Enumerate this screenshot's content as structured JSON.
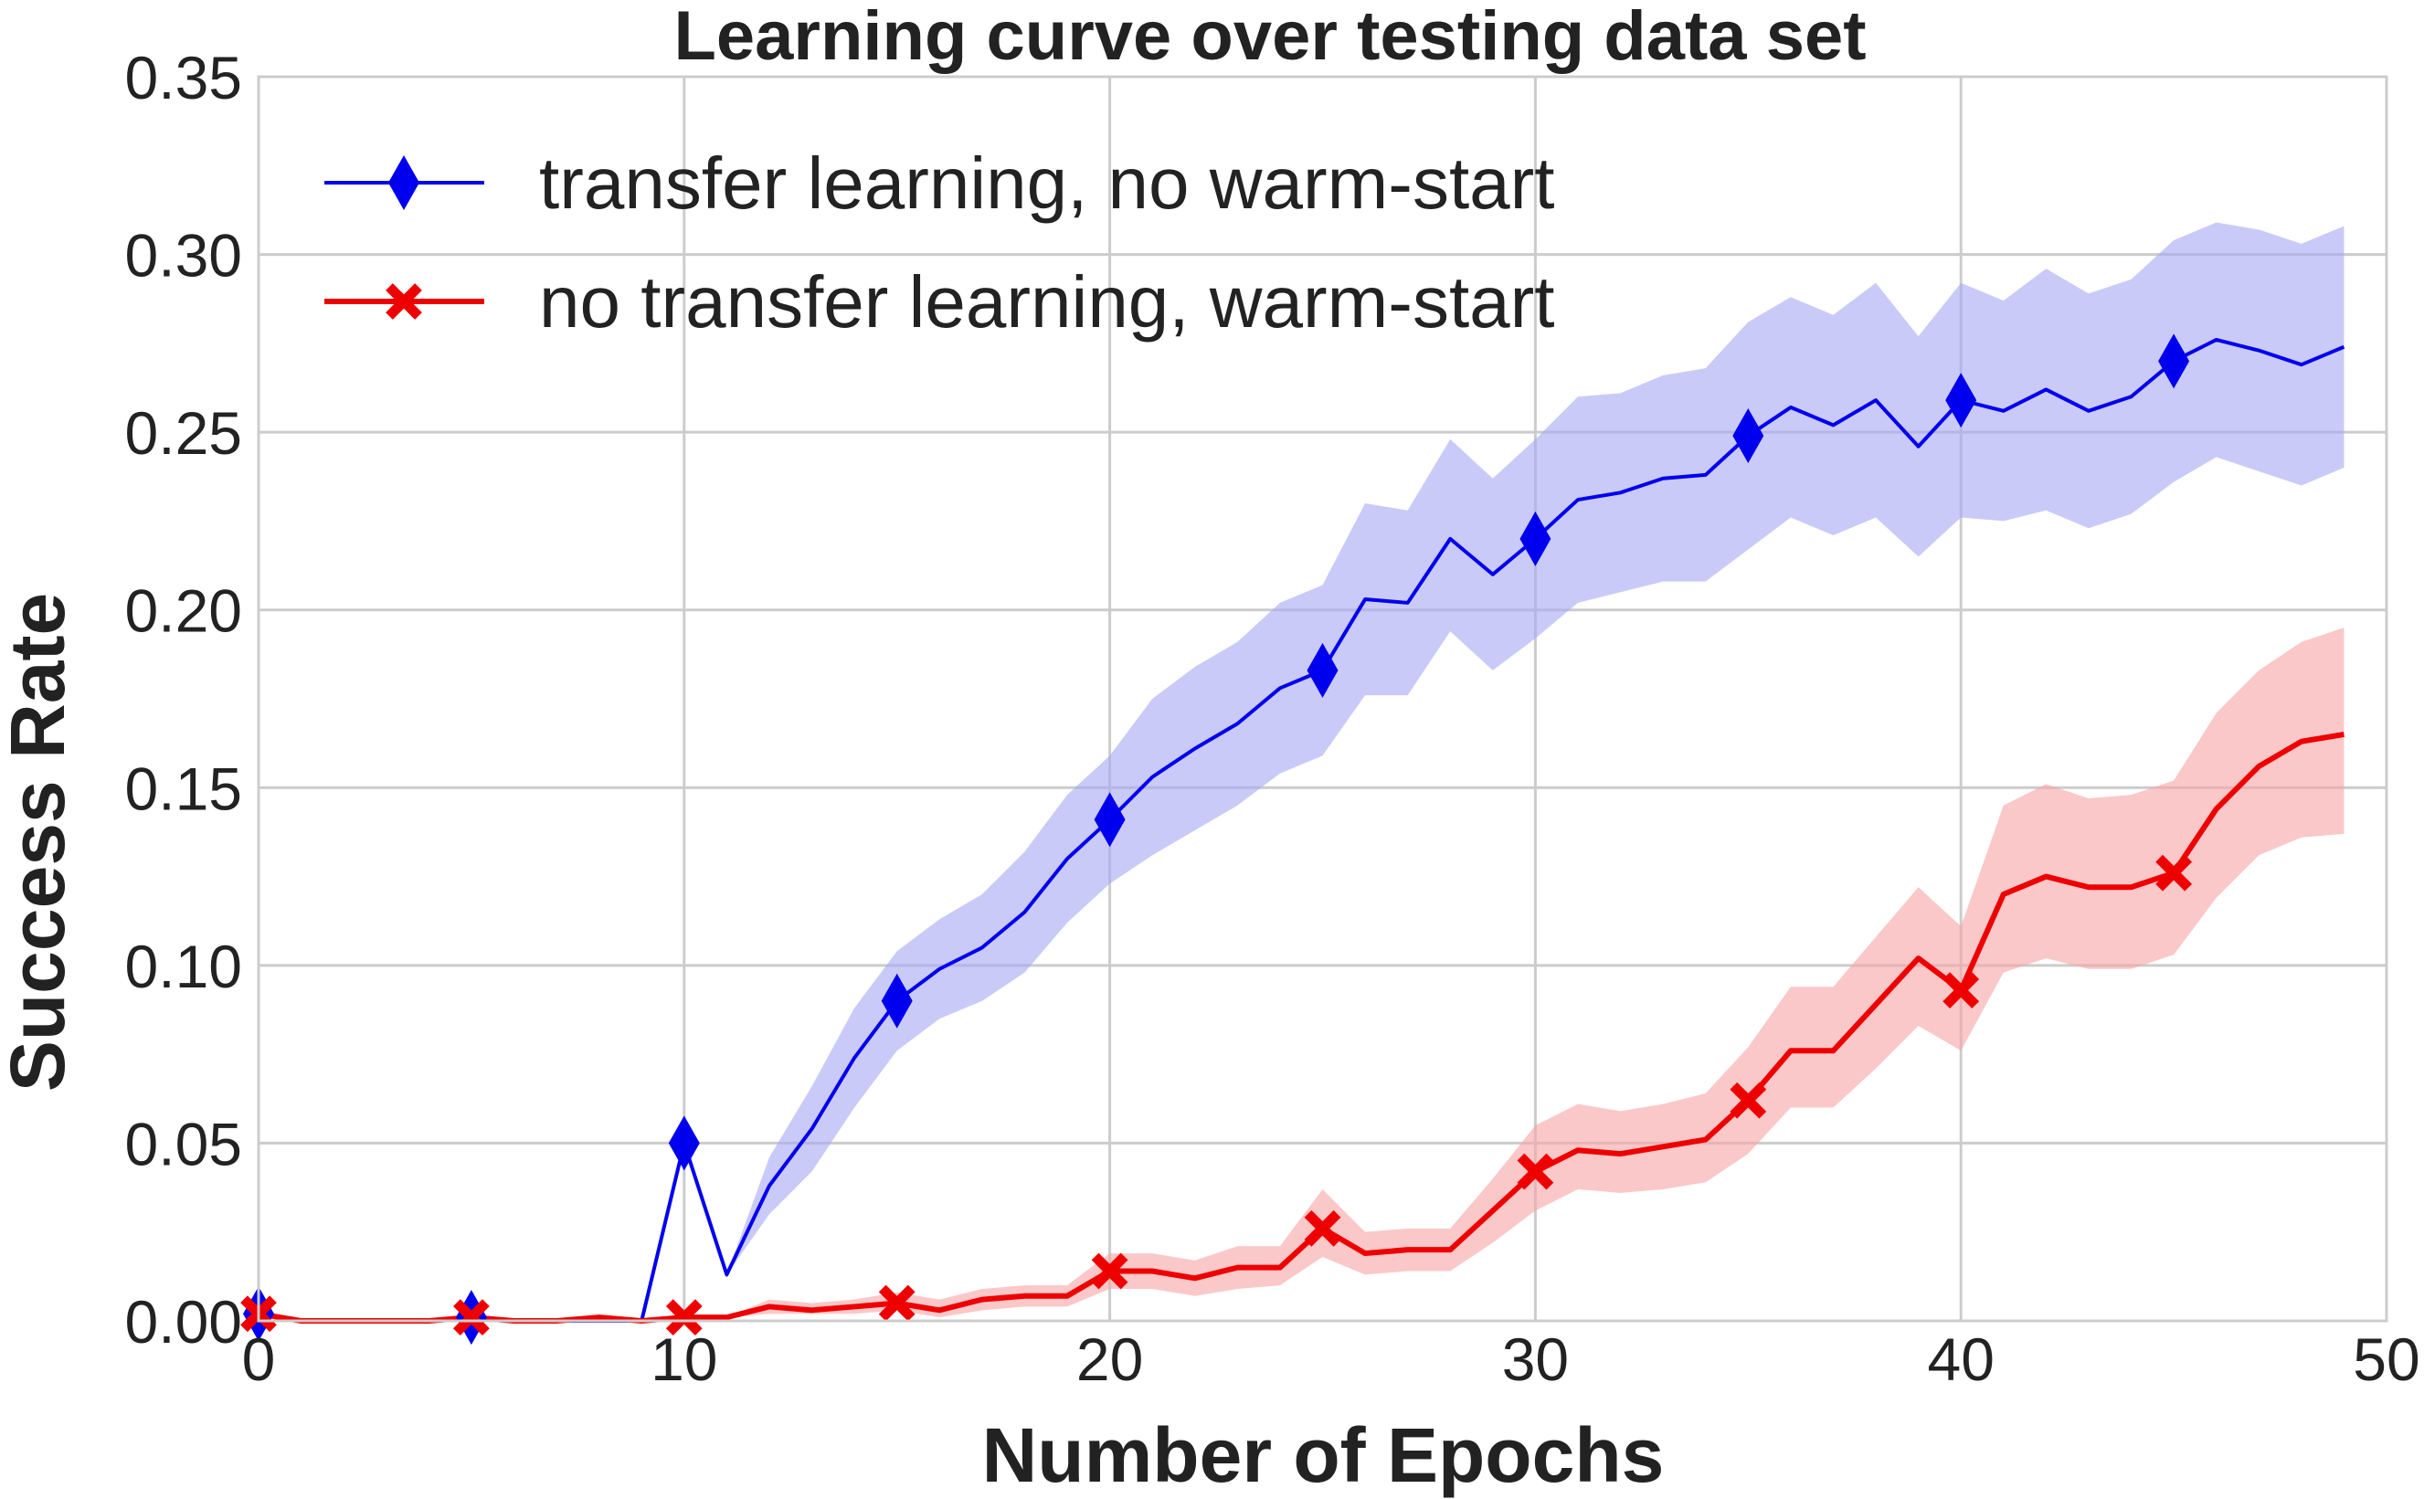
{
  "chart_data": {
    "type": "line",
    "title": "Learning curve over testing data set",
    "xlabel": "Number of Epochs",
    "ylabel": "Success Rate",
    "xlim": [
      0,
      50
    ],
    "ylim": [
      0,
      0.35
    ],
    "xticks": [
      0,
      10,
      20,
      30,
      40,
      50
    ],
    "xtick_labels": [
      "0",
      "10",
      "20",
      "30",
      "40",
      "50"
    ],
    "yticks": [
      0,
      0.05,
      0.1,
      0.15,
      0.2,
      0.25,
      0.3,
      0.35
    ],
    "ytick_labels": [
      "0.00",
      "0.05",
      "0.10",
      "0.15",
      "0.20",
      "0.25",
      "0.30",
      "0.35"
    ],
    "grid": true,
    "legend_position": "top-left",
    "x": [
      0,
      1,
      2,
      3,
      4,
      5,
      6,
      7,
      8,
      9,
      10,
      11,
      12,
      13,
      14,
      15,
      16,
      17,
      18,
      19,
      20,
      21,
      22,
      23,
      24,
      25,
      26,
      27,
      28,
      29,
      30,
      31,
      32,
      33,
      34,
      35,
      36,
      37,
      38,
      39,
      40,
      41,
      42,
      43,
      44,
      45,
      46,
      47,
      48,
      49
    ],
    "series": [
      {
        "name": "transfer learning, no warm-start",
        "color": "#0000ee",
        "band_color": "#a6a6f5",
        "marker": "diamond",
        "marker_every": 5,
        "values": [
          0.002,
          0,
          0,
          0,
          0,
          0.001,
          0,
          0,
          0,
          0,
          0.05,
          0.013,
          0.038,
          0.054,
          0.074,
          0.09,
          0.099,
          0.105,
          0.115,
          0.13,
          0.141,
          0.153,
          0.161,
          0.168,
          0.178,
          0.183,
          0.203,
          0.202,
          0.22,
          0.21,
          0.22,
          0.231,
          0.233,
          0.237,
          0.238,
          0.249,
          0.257,
          0.252,
          0.259,
          0.246,
          0.259,
          0.256,
          0.262,
          0.256,
          0.26,
          0.27,
          0.276,
          0.273,
          0.269,
          0.274
        ],
        "lower": [
          0.002,
          0,
          0,
          0,
          0,
          0.001,
          0,
          0,
          0,
          0,
          0.05,
          0.013,
          0.03,
          0.042,
          0.06,
          0.076,
          0.085,
          0.09,
          0.098,
          0.112,
          0.123,
          0.131,
          0.138,
          0.145,
          0.154,
          0.159,
          0.176,
          0.176,
          0.194,
          0.183,
          0.192,
          0.202,
          0.205,
          0.208,
          0.208,
          0.217,
          0.226,
          0.221,
          0.226,
          0.215,
          0.226,
          0.225,
          0.228,
          0.223,
          0.227,
          0.236,
          0.243,
          0.239,
          0.235,
          0.24
        ],
        "upper": [
          0.002,
          0,
          0,
          0,
          0,
          0.001,
          0,
          0,
          0,
          0,
          0.05,
          0.013,
          0.046,
          0.066,
          0.088,
          0.104,
          0.113,
          0.12,
          0.132,
          0.148,
          0.159,
          0.175,
          0.184,
          0.191,
          0.202,
          0.207,
          0.23,
          0.228,
          0.248,
          0.237,
          0.248,
          0.26,
          0.261,
          0.266,
          0.268,
          0.281,
          0.288,
          0.283,
          0.292,
          0.277,
          0.292,
          0.287,
          0.296,
          0.289,
          0.293,
          0.304,
          0.309,
          0.307,
          0.303,
          0.308
        ]
      },
      {
        "name": "no transfer learning, warm-start",
        "color": "#ee0000",
        "band_color": "#f7a3a3",
        "marker": "x",
        "marker_every": 5,
        "values": [
          0.002,
          0,
          0,
          0,
          0,
          0.001,
          0,
          0,
          0.001,
          0,
          0.001,
          0.001,
          0.004,
          0.003,
          0.004,
          0.005,
          0.003,
          0.006,
          0.007,
          0.007,
          0.014,
          0.014,
          0.012,
          0.015,
          0.015,
          0.026,
          0.019,
          0.02,
          0.02,
          0.031,
          0.042,
          0.048,
          0.047,
          0.049,
          0.051,
          0.062,
          0.076,
          0.076,
          0.089,
          0.102,
          0.093,
          0.12,
          0.125,
          0.122,
          0.122,
          0.126,
          0.144,
          0.156,
          0.163,
          0.165
        ],
        "lower": [
          0.002,
          0,
          0,
          0,
          0,
          0.001,
          0,
          0,
          0.001,
          0,
          0.001,
          0.001,
          0.002,
          0.002,
          0.002,
          0.003,
          0.001,
          0.003,
          0.004,
          0.004,
          0.009,
          0.009,
          0.007,
          0.009,
          0.01,
          0.018,
          0.013,
          0.014,
          0.014,
          0.022,
          0.031,
          0.037,
          0.036,
          0.037,
          0.039,
          0.047,
          0.06,
          0.06,
          0.071,
          0.083,
          0.076,
          0.098,
          0.102,
          0.099,
          0.099,
          0.103,
          0.119,
          0.131,
          0.136,
          0.137
        ],
        "upper": [
          0.002,
          0,
          0,
          0,
          0,
          0.001,
          0,
          0,
          0.001,
          0,
          0.001,
          0.001,
          0.006,
          0.005,
          0.006,
          0.008,
          0.006,
          0.009,
          0.01,
          0.01,
          0.019,
          0.019,
          0.017,
          0.021,
          0.021,
          0.037,
          0.025,
          0.026,
          0.026,
          0.04,
          0.055,
          0.061,
          0.059,
          0.061,
          0.064,
          0.077,
          0.094,
          0.094,
          0.108,
          0.122,
          0.111,
          0.145,
          0.151,
          0.147,
          0.148,
          0.152,
          0.171,
          0.183,
          0.191,
          0.195
        ]
      }
    ]
  }
}
